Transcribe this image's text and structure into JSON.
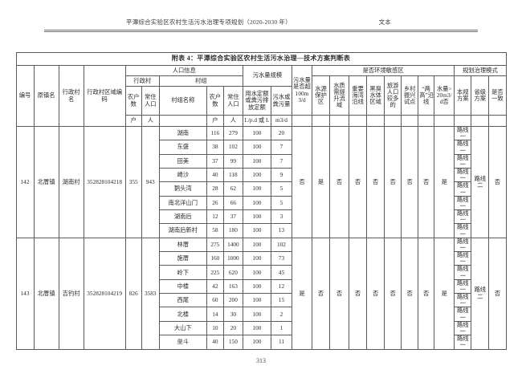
{
  "doc_header": {
    "title": "平潭综合实验区农村生活污水治理专项规划（2020-2030 年）",
    "label": "文本"
  },
  "table": {
    "title": "附表 4：平潭综合实验区农村生活污水治理—技术方案判断表",
    "header": {
      "bianhao": "编号",
      "yuan_zhen_ming": "原镇名",
      "xingzhengcun_ming": "行政村名",
      "quyu_bianma": "行政村区域编码",
      "renkou_xinxi": "人口信息",
      "xingzhengcun": "行政村",
      "cunzu": "村组",
      "nonghu_shu": "农户数",
      "changzhu_renkou": "常住人口",
      "cunzu_mingcheng": "村组名称",
      "wushui_guimo": "污水量规模",
      "yongshui_dinge": "用水定额或粪污排放定额",
      "wushui_fenwu_liang": "污水或粪污量",
      "chao_100": "污水量是否超100m3/d",
      "huanjing_minganqu": "是否环境敏感区",
      "shuiyuan_baohuqu": "水源保护区",
      "shuizhi_tisheng": "水质需提升流域",
      "zhongyao_haiwan": "重要海湾沿线",
      "heichou_shuiti": "黑臭水体区域",
      "lvyou_renkou": "旅游人口较多的",
      "xiangcun_zhenxing": "乡村振兴试点",
      "lianggao_yanxian": "“两高”沿线",
      "shuiliang_20": "水量>20m3/d否",
      "guihua_moshi": "规划治理模式",
      "bengui_fangan": "本规方案",
      "shengji_fangan": "省级方案",
      "shifou_yizhi": "是否一致",
      "units": {
        "hu": "户",
        "ren": "人",
        "lpd": "L/p.d 或 L",
        "m3d": "m3/d"
      }
    },
    "groups": [
      {
        "id": "142",
        "town": "北厝镇",
        "village": "湖南村",
        "code": "352828104218",
        "households": "355",
        "population": "943",
        "subrows": [
          {
            "name": "湖南",
            "hu": "116",
            "ren": "279",
            "quota": "100",
            "sewage": "20",
            "plan": "路线一"
          },
          {
            "name": "东盛",
            "hu": "38",
            "ren": "102",
            "quota": "100",
            "sewage": "7",
            "plan": "路线一"
          },
          {
            "name": "田美",
            "hu": "37",
            "ren": "99",
            "quota": "100",
            "sewage": "7",
            "plan": "路线一"
          },
          {
            "name": "崎沙",
            "hu": "40",
            "ren": "118",
            "quota": "100",
            "sewage": "9",
            "plan": "路线一"
          },
          {
            "name": "鹅头湾",
            "hu": "28",
            "ren": "62",
            "quota": "100",
            "sewage": "5",
            "plan": "路线一"
          },
          {
            "name": "南北洋山门",
            "hu": "26",
            "ren": "66",
            "quota": "100",
            "sewage": "5",
            "plan": "路线一"
          },
          {
            "name": "湖南后",
            "hu": "12",
            "ren": "37",
            "quota": "100",
            "sewage": "3",
            "plan": "路线一"
          },
          {
            "name": "湖南后新村",
            "hu": "58",
            "ren": "180",
            "quota": "100",
            "sewage": "13",
            "plan": "路线一"
          }
        ],
        "over_100": "否",
        "sensitive": [
          "是",
          "否",
          "否",
          "否",
          "否",
          "否",
          "否",
          "是"
        ],
        "province_scheme": "路线二",
        "consistent": "否"
      },
      {
        "id": "143",
        "town": "北厝镇",
        "village": "吉钓村",
        "code": "352828104219",
        "households": "826",
        "population": "3583",
        "subrows": [
          {
            "name": "林厝",
            "hu": "275",
            "ren": "1400",
            "quota": "100",
            "sewage": "102",
            "plan": "路线一"
          },
          {
            "name": "施厝",
            "hu": "160",
            "ren": "1000",
            "quota": "100",
            "sewage": "73",
            "plan": "路线一"
          },
          {
            "name": "岭下",
            "hu": "225",
            "ren": "620",
            "quota": "100",
            "sewage": "45",
            "plan": "路线一"
          },
          {
            "name": "中楼",
            "hu": "42",
            "ren": "163",
            "quota": "100",
            "sewage": "12",
            "plan": "路线一"
          },
          {
            "name": "西尾",
            "hu": "60",
            "ren": "200",
            "quota": "100",
            "sewage": "15",
            "plan": "路线一"
          },
          {
            "name": "北楼",
            "hu": "14",
            "ren": "30",
            "quota": "100",
            "sewage": "2",
            "plan": "路线一"
          },
          {
            "name": "大山下",
            "hu": "10",
            "ren": "20",
            "quota": "100",
            "sewage": "1",
            "plan": "路线一"
          },
          {
            "name": "垒斗",
            "hu": "40",
            "ren": "150",
            "quota": "100",
            "sewage": "11",
            "plan": "路线一"
          }
        ],
        "over_100": "是",
        "sensitive": [
          "否",
          "否",
          "否",
          "否",
          "否",
          "否",
          "否",
          "是"
        ],
        "province_scheme": "路线二",
        "consistent": "否"
      }
    ]
  },
  "page_number": "313"
}
